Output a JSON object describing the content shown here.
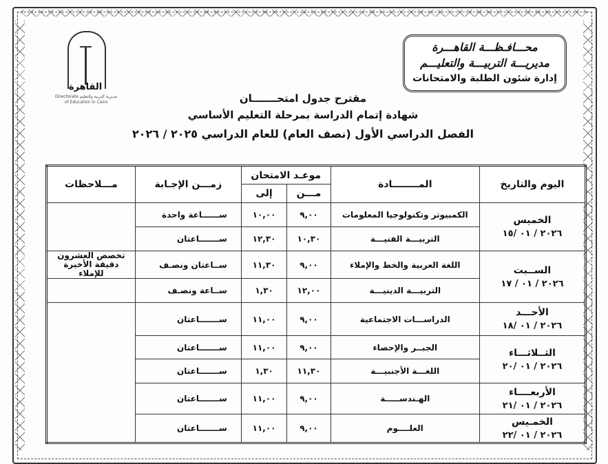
{
  "header": {
    "governorate": "محـــافـظـــة القاهـــرة",
    "directorate": "مديريـــة التربيـــة والتعليـــم",
    "department": "إدارة شئون الطلبة والامتحانات",
    "logo_text": "القاهرة",
    "logo_subtext": "مديرية التربية والتعليم Directorate of Education in Cairo"
  },
  "titles": {
    "line1": "مقترح جدول امتحـــــــان",
    "line2": "شهادة إتمام الدراسة بمرحلة التعليم الأساسي",
    "line3": "الفصل الدراسي الأول (نصف العام) للعام الدراسي ٢٠٢٥ / ٢٠٢٦"
  },
  "table": {
    "headers": {
      "day_date": "اليوم والتاريخ",
      "subject": "المــــــــادة",
      "exam_time": "موعـد الامتحان",
      "from": "مـــن",
      "to": "إلى",
      "duration": "زمـــن الإجـابة",
      "notes": "مـــلاحظات"
    },
    "days": [
      {
        "name": "الخميس",
        "date": "٢٠٢٦ / ٠١ /١٥"
      },
      {
        "name": "الســبت",
        "date": "٢٠٢٦ / ٠١ / ١٧"
      },
      {
        "name": "الأحـــد",
        "date": "٢٠٢٦ / ٠١ /١٨"
      },
      {
        "name": "الثــلاثـــاء",
        "date": "٢٠٢٦ / ٠١ /٢٠"
      },
      {
        "name": "الأربعــــاء",
        "date": "٢٠٢٦ / ٠١ /٢١"
      },
      {
        "name": "الخمـيس",
        "date": "٢٠٢٦ / ٠١ /٢٢"
      }
    ],
    "rows": [
      {
        "subject": "الكمبيوتر وتكنولوجيا المعلومات",
        "from": "٩,٠٠",
        "to": "١٠,٠٠",
        "duration": "ســــــاعة واحدة"
      },
      {
        "subject": "التربيـــة الفنيـــة",
        "from": "١٠,٣٠",
        "to": "١٢,٣٠",
        "duration": "ســـــــاعتان"
      },
      {
        "subject": "اللغة العربية والخط والإملاء",
        "from": "٩,٠٠",
        "to": "١١,٣٠",
        "duration": "ســاعتان ونصـف",
        "note": "تخصص العشرون دقيقة الأخيرة للإملاء"
      },
      {
        "subject": "التربيـــة الدينيـــة",
        "from": "١٢,٠٠",
        "to": "١,٣٠",
        "duration": "ســاعة ونصـف"
      },
      {
        "subject": "الدراســـات الاجتماعية",
        "from": "٩,٠٠",
        "to": "١١,٠٠",
        "duration": "ســـــــاعتان"
      },
      {
        "subject": "الجبــر والإحصاء",
        "from": "٩,٠٠",
        "to": "١١,٠٠",
        "duration": "ســـــــاعتان"
      },
      {
        "subject": "اللغـــة الأجنبيـــة",
        "from": "١١,٣٠",
        "to": "١,٣٠",
        "duration": "ســـــــاعتان"
      },
      {
        "subject": "الهـندســـــة",
        "from": "٩,٠٠",
        "to": "١١,٠٠",
        "duration": "ســـــــاعتان"
      },
      {
        "subject": "العلــــوم",
        "from": "٩,٠٠",
        "to": "١١,٠٠",
        "duration": "ســـــــاعتان"
      }
    ]
  }
}
